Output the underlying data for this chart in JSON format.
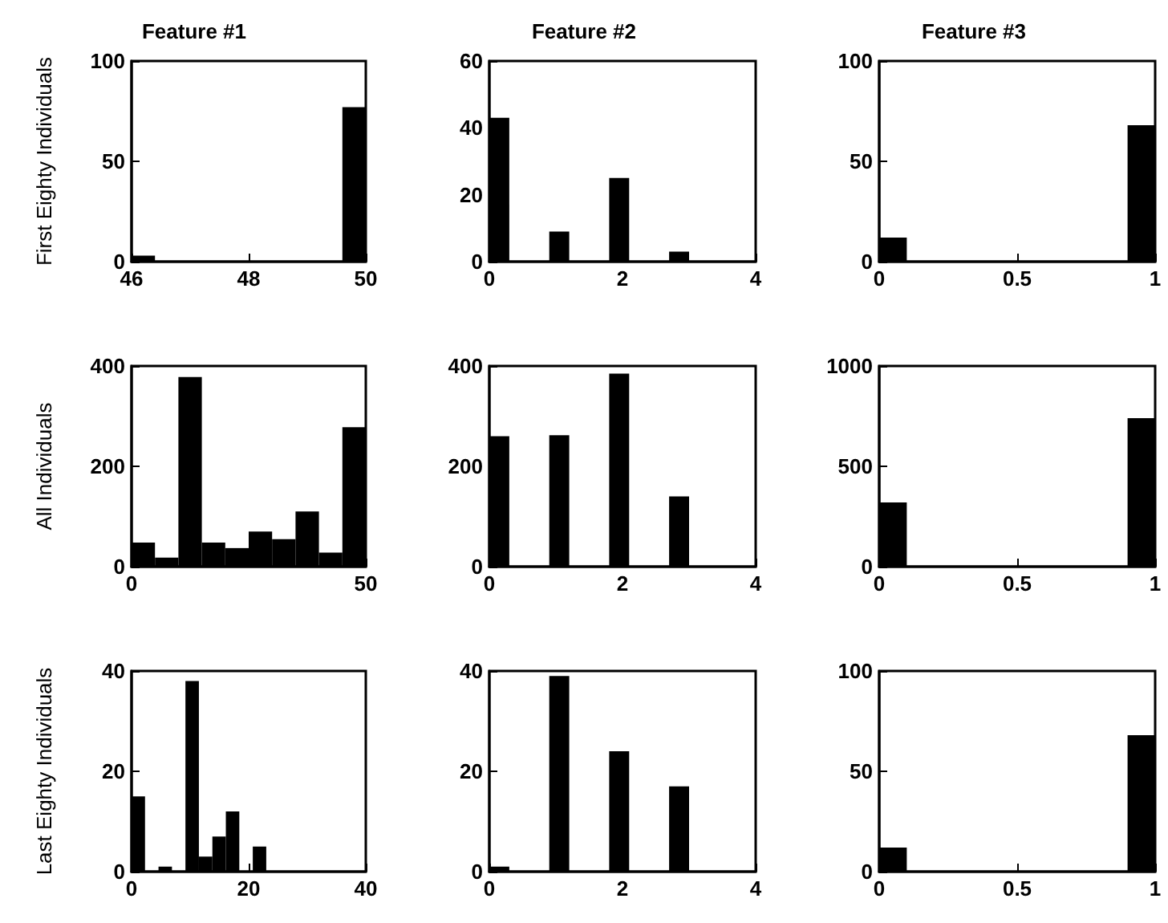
{
  "chart_data": [
    {
      "type": "histogram",
      "title": "Feature #1",
      "ylabel": "First Eighty Individuals",
      "bins": [
        46,
        46.4,
        46.8,
        47.2,
        47.6,
        48,
        48.4,
        48.8,
        49.2,
        49.6,
        50
      ],
      "values": [
        3,
        0,
        0,
        0,
        0,
        0,
        0,
        0,
        0,
        77
      ],
      "color": "#000000",
      "xlim": [
        46,
        50
      ],
      "xticks": [
        46,
        48,
        50
      ],
      "ylim": [
        0,
        100
      ],
      "yticks": [
        0,
        50,
        100
      ]
    },
    {
      "type": "histogram",
      "title": "Feature #2",
      "bins": [
        0,
        0.3,
        0.6,
        0.9,
        1.2,
        1.5,
        1.8,
        2.1,
        2.4,
        2.7,
        3
      ],
      "values": [
        43,
        0,
        0,
        9,
        0,
        0,
        25,
        0,
        0,
        3
      ],
      "color": "#000000",
      "xlim": [
        0,
        4
      ],
      "xticks": [
        0,
        2,
        4
      ],
      "ylim": [
        0,
        60
      ],
      "yticks": [
        0,
        20,
        40,
        60
      ]
    },
    {
      "type": "histogram",
      "title": "Feature #3",
      "bins": [
        0,
        0.1,
        0.2,
        0.3,
        0.4,
        0.5,
        0.6,
        0.7,
        0.8,
        0.9,
        1
      ],
      "values": [
        12,
        0,
        0,
        0,
        0,
        0,
        0,
        0,
        0,
        68
      ],
      "color": "#000000",
      "xlim": [
        0,
        1
      ],
      "xticks": [
        0,
        0.5,
        1
      ],
      "ylim": [
        0,
        100
      ],
      "yticks": [
        0,
        50,
        100
      ]
    },
    {
      "type": "histogram",
      "ylabel": "All Individuals",
      "bins": [
        0,
        5,
        10,
        15,
        20,
        25,
        30,
        35,
        40,
        45,
        50
      ],
      "values": [
        48,
        18,
        378,
        48,
        37,
        70,
        55,
        110,
        28,
        278
      ],
      "color": "#000000",
      "xlim": [
        0,
        50
      ],
      "xticks": [
        0,
        50
      ],
      "ylim": [
        0,
        400
      ],
      "yticks": [
        0,
        200,
        400
      ]
    },
    {
      "type": "histogram",
      "bins": [
        0,
        0.3,
        0.6,
        0.9,
        1.2,
        1.5,
        1.8,
        2.1,
        2.4,
        2.7,
        3
      ],
      "values": [
        260,
        0,
        0,
        262,
        0,
        0,
        385,
        0,
        0,
        140
      ],
      "color": "#000000",
      "xlim": [
        0,
        4
      ],
      "xticks": [
        0,
        2,
        4
      ],
      "ylim": [
        0,
        400
      ],
      "yticks": [
        0,
        200,
        400
      ]
    },
    {
      "type": "histogram",
      "bins": [
        0,
        0.1,
        0.2,
        0.3,
        0.4,
        0.5,
        0.6,
        0.7,
        0.8,
        0.9,
        1
      ],
      "values": [
        320,
        0,
        0,
        0,
        0,
        0,
        0,
        0,
        0,
        740
      ],
      "color": "#000000",
      "xlim": [
        0,
        1
      ],
      "xticks": [
        0,
        0.5,
        1
      ],
      "ylim": [
        0,
        1000
      ],
      "yticks": [
        0,
        500,
        1000
      ]
    },
    {
      "type": "histogram",
      "ylabel": "Last Eighty Individuals",
      "bins": [
        0,
        2.3,
        4.6,
        6.9,
        9.2,
        11.5,
        13.8,
        16.1,
        18.4,
        20.7,
        23
      ],
      "values": [
        15,
        0,
        1,
        0,
        38,
        3,
        7,
        12,
        0,
        5
      ],
      "color": "#000000",
      "xlim": [
        0,
        40
      ],
      "xticks": [
        0,
        20,
        40
      ],
      "ylim": [
        0,
        40
      ],
      "yticks": [
        0,
        20,
        40
      ]
    },
    {
      "type": "histogram",
      "bins": [
        0,
        0.3,
        0.6,
        0.9,
        1.2,
        1.5,
        1.8,
        2.1,
        2.4,
        2.7,
        3
      ],
      "values": [
        1,
        0,
        0,
        39,
        0,
        0,
        24,
        0,
        0,
        17
      ],
      "color": "#000000",
      "xlim": [
        0,
        4
      ],
      "xticks": [
        0,
        2,
        4
      ],
      "ylim": [
        0,
        40
      ],
      "yticks": [
        0,
        20,
        40
      ]
    },
    {
      "type": "histogram",
      "bins": [
        0,
        0.1,
        0.2,
        0.3,
        0.4,
        0.5,
        0.6,
        0.7,
        0.8,
        0.9,
        1
      ],
      "values": [
        12,
        0,
        0,
        0,
        0,
        0,
        0,
        0,
        0,
        68
      ],
      "color": "#000000",
      "xlim": [
        0,
        1
      ],
      "xticks": [
        0,
        0.5,
        1
      ],
      "ylim": [
        0,
        100
      ],
      "yticks": [
        0,
        50,
        100
      ]
    }
  ]
}
